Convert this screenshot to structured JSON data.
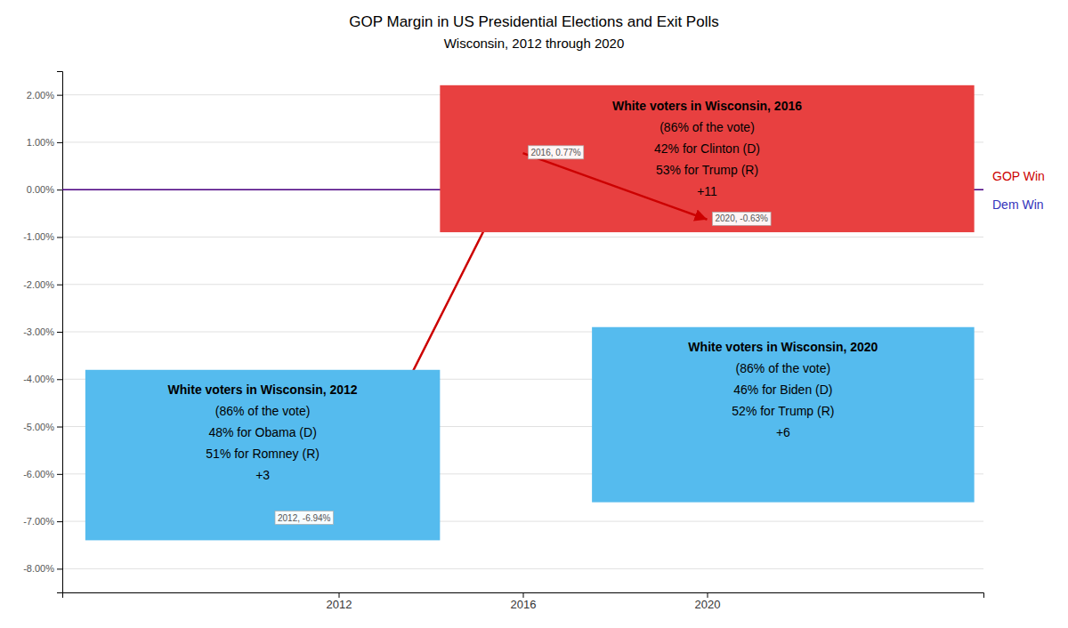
{
  "chart_data": {
    "type": "line",
    "title": "GOP Margin in US Presidential Elections and Exit Polls",
    "subtitle": "Wisconsin, 2012 through 2020",
    "x": [
      2012,
      2016,
      2020
    ],
    "values": [
      -0.0694,
      0.0077,
      -0.0063
    ],
    "value_labels": [
      "2012, -6.94%",
      "2016, 0.77%",
      "2020, -0.63%"
    ],
    "data_labels": true,
    "color": "#CC0000",
    "xlim": [
      2006,
      2026
    ],
    "xticks": [
      2012,
      2016,
      2020
    ],
    "ylim": [
      -0.085,
      0.025
    ],
    "yticks": [
      {
        "value": -0.08,
        "label": "-8.00%"
      },
      {
        "value": -0.07,
        "label": "-7.00%"
      },
      {
        "value": -0.06,
        "label": "-6.00%"
      },
      {
        "value": -0.05,
        "label": "-5.00%"
      },
      {
        "value": -0.04,
        "label": "-4.00%"
      },
      {
        "value": -0.03,
        "label": "-3.00%"
      },
      {
        "value": -0.02,
        "label": "-2.00%"
      },
      {
        "value": -0.01,
        "label": "-1.00%"
      },
      {
        "value": 0.0,
        "label": "0.00%"
      },
      {
        "value": 0.01,
        "label": "1.00%"
      },
      {
        "value": 0.02,
        "label": "2.00%"
      }
    ],
    "grid": true,
    "annotations": [
      {
        "type": "hline",
        "value": 0,
        "color": "#4B0082"
      },
      {
        "type": "text",
        "text": "GOP Win",
        "color": "#CC0000"
      },
      {
        "type": "text",
        "text": "Dem Win",
        "color": "#3333BB"
      },
      {
        "type": "box",
        "color": "#55BBEE",
        "title": "White voters in Wisconsin, 2012",
        "lines": [
          "(86% of the vote)",
          "48% for Obama (D)",
          "51% for Romney (R)",
          "+3"
        ]
      },
      {
        "type": "box",
        "color": "#E84040",
        "title": "White voters in Wisconsin, 2016",
        "lines": [
          "(86% of the vote)",
          "42% for Clinton (D)",
          "53% for Trump (R)",
          "+11"
        ]
      },
      {
        "type": "box",
        "color": "#55BBEE",
        "title": "White voters in Wisconsin, 2020",
        "lines": [
          "(86% of the vote)",
          "46% for Biden (D)",
          "52% for Trump (R)",
          "+6"
        ]
      }
    ]
  }
}
